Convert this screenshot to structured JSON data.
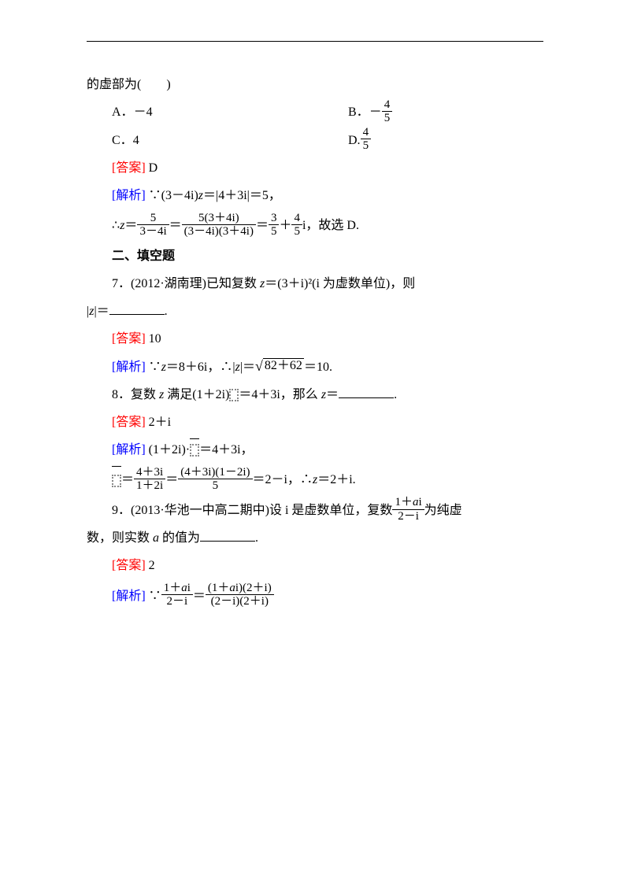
{
  "stem_tail": "的虚部为(　　)",
  "options": {
    "A": {
      "label": "A．",
      "val": "－4"
    },
    "B": {
      "label": "B．",
      "sign": "－",
      "num": "4",
      "den": "5"
    },
    "C": {
      "label": "C．",
      "val": "4"
    },
    "D": {
      "label": "D.",
      "num": "4",
      "den": "5"
    }
  },
  "labels": {
    "answer": "[答案]",
    "analysis": "[解析]"
  },
  "q6": {
    "ans": "D",
    "step1_pre": "∵(3－4i)",
    "step1_mid": "＝|4＋3i|＝5，",
    "step2_pre": "∴",
    "step2_eq": "＝",
    "f1_num": "5",
    "f1_den": "3－4i",
    "f2_num": "5(3＋4i)",
    "f2_den": "(3－4i)(3＋4i)",
    "f3_num": "3",
    "f3_den": "5",
    "plus": "＋",
    "f4_num": "4",
    "f4_den": "5",
    "step2_tail": "i，故选 D."
  },
  "sec2": "二、填空题",
  "q7": {
    "text1": "7．(2012·湖南理)已知复数 ",
    "text2": "＝(3＋i)²(i 为虚数单位)，则",
    "text3_pre": "|",
    "text3_mid": "|＝",
    "ans": "10",
    "sol_pre": "∵",
    "sol_mid1": "＝8＋6i，∴|",
    "sol_mid2": "|＝",
    "sqrt_arg": "82＋62",
    "sol_tail": "＝10."
  },
  "q8": {
    "text1": "8．复数 ",
    "text2": " 满足(1＋2i)",
    "text3": "＝4＋3i，那么 ",
    "text4": "＝",
    "ans": "2＋i",
    "sol_line1_a": "(1＋2i)·",
    "sol_line1_b": "＝4＋3i，",
    "f1_num": "4＋3i",
    "f1_den": "1＋2i",
    "f2_num": "(4＋3i)(1－2i)",
    "f2_den": "5",
    "sol_tail": "＝2－i，∴",
    "sol_tail2": "＝2＋i."
  },
  "q9": {
    "text1": "9．(2013·华池一中高二期中)设 i 是虚数单位，复数",
    "f_num": "1＋",
    "f_num_ai": "i",
    "f_den": "2－i",
    "text2": "为纯虚",
    "text3": "数，则实数 ",
    "text4": " 的值为",
    "ans": "2",
    "sol_pre": "∵",
    "g1_num_a": "1＋",
    "g1_num_b": "i",
    "g1_den": "2－i",
    "g2_num_a": "(1＋",
    "g2_num_b": "i)(2＋i)",
    "g2_den": "(2－i)(2＋i)"
  },
  "vars": {
    "z": "z",
    "a": "a"
  }
}
